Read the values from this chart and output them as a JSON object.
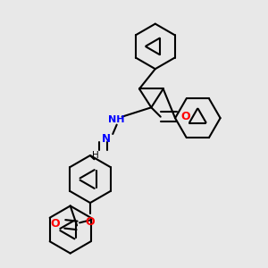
{
  "background_color": "#e8e8e8",
  "bond_color": "#000000",
  "atom_colors": {
    "N": "#0000ff",
    "O": "#ff0000",
    "H": "#000000",
    "C": "#000000"
  },
  "figsize": [
    3.0,
    3.0
  ],
  "dpi": 100
}
